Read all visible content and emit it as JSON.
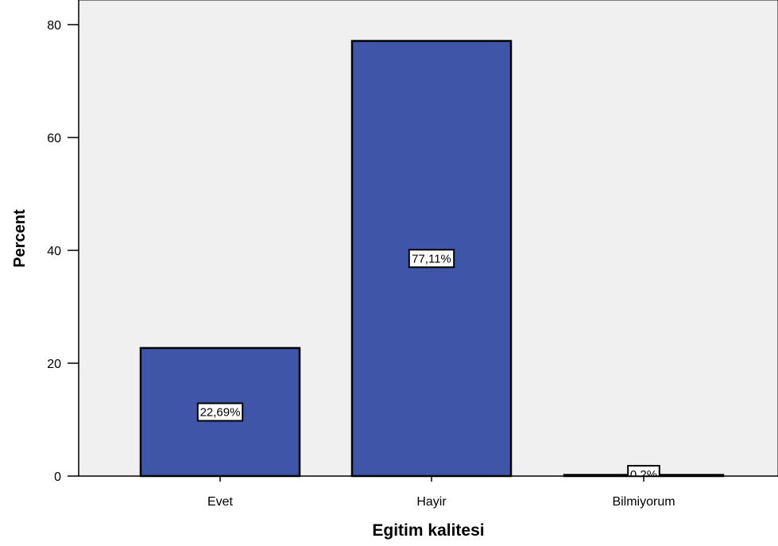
{
  "chart_data": {
    "type": "bar",
    "title": "",
    "xlabel": "Egitim kalitesi",
    "ylabel": "Percent",
    "categories": [
      "Evet",
      "Hayir",
      "Bilmiyorum"
    ],
    "values": [
      22.69,
      77.11,
      0.2
    ],
    "data_labels": [
      "22,69%",
      "77,11%",
      "0,2%"
    ],
    "ylim": [
      0,
      85
    ],
    "yticks": [
      0,
      20,
      40,
      60,
      80
    ],
    "ytick_labels": [
      "0",
      "20",
      "40",
      "60",
      "80"
    ],
    "grid": false,
    "legend": "none",
    "colors": {
      "bar_fill": "#3e55a8",
      "bar_stroke": "#000000",
      "plot_background": "#f0f0f0",
      "axis": "#000000",
      "label_box_fill": "#ffffff"
    }
  }
}
